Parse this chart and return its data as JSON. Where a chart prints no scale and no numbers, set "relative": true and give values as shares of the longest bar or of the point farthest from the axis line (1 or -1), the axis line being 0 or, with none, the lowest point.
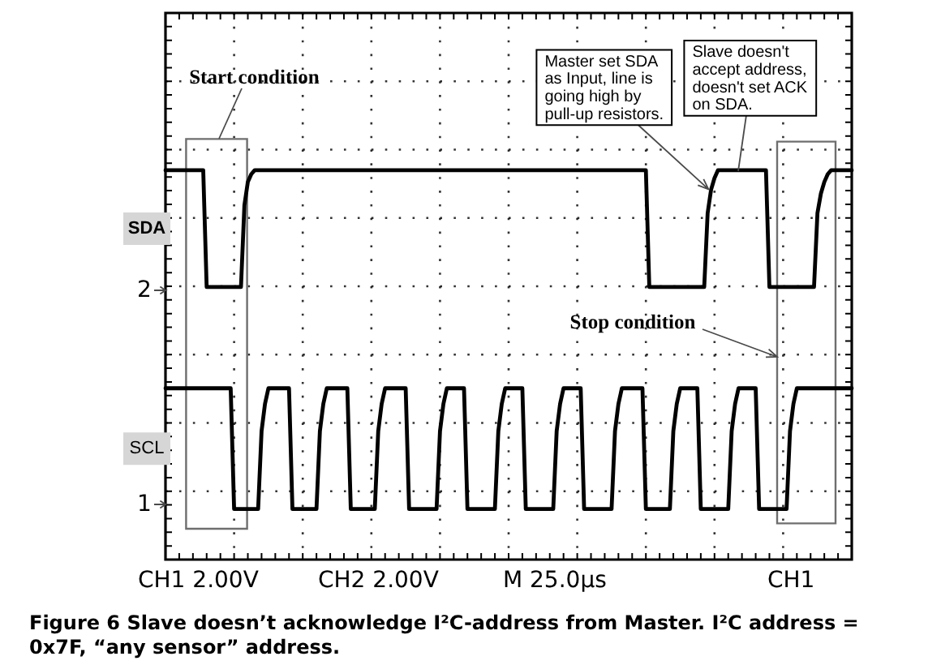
{
  "chart_data": {
    "type": "line",
    "relative": true,
    "grid": true,
    "categories": [
      null,
      null,
      null,
      null,
      null,
      null,
      null,
      null,
      null,
      null,
      null,
      null,
      null,
      null,
      null,
      null,
      null,
      null,
      null,
      null,
      null,
      null,
      null,
      null,
      null,
      null,
      null,
      null,
      null,
      null,
      null,
      null,
      null,
      null,
      null,
      null,
      null,
      null,
      null,
      null,
      null,
      null,
      null,
      null,
      null,
      null,
      null,
      null,
      null,
      null,
      null,
      null,
      null,
      null,
      null,
      null,
      null,
      null,
      null,
      null,
      null,
      null,
      null,
      null,
      null,
      null,
      null,
      null,
      null,
      null,
      null,
      null,
      null,
      null,
      null,
      null,
      null,
      null,
      null,
      null,
      null,
      null,
      null,
      null,
      null,
      null,
      null,
      null,
      null,
      null,
      null,
      null,
      null,
      null,
      null,
      null,
      null,
      null,
      null,
      null,
      null,
      null,
      null,
      null,
      null,
      null,
      null,
      null,
      null,
      null,
      null,
      null,
      null,
      null,
      null,
      null,
      null,
      null,
      null,
      null,
      null,
      null,
      null,
      null,
      null,
      null,
      null,
      null,
      null,
      null,
      null,
      null,
      null,
      null,
      null,
      null,
      null,
      null,
      null,
      null,
      null,
      null,
      null,
      null,
      null,
      null,
      null,
      null,
      null,
      null,
      null,
      null,
      null,
      null,
      null,
      null,
      null,
      null,
      null,
      null,
      null,
      null,
      null,
      null,
      null,
      null,
      null,
      null,
      null,
      null,
      null,
      null,
      null,
      null,
      null,
      null,
      null,
      null,
      null,
      null,
      null,
      null,
      null,
      null,
      null,
      null,
      null,
      null,
      null,
      null,
      null,
      null,
      null,
      null,
      null,
      null,
      null,
      null,
      null,
      null,
      null
    ],
    "series": [
      {
        "name": "SDA",
        "color": "#000000",
        "values": [
          1,
          1,
          1,
          1,
          1,
          1,
          1,
          1,
          1,
          1,
          1,
          1,
          0.7,
          0.7,
          0.7,
          0.7,
          0.7,
          0.7,
          0.7,
          0.7,
          0.7,
          0.7,
          0.7,
          0.91,
          0.97,
          0.99,
          1,
          1,
          1,
          1,
          1,
          1,
          1,
          1,
          1,
          1,
          1,
          1,
          1,
          1,
          1,
          1,
          1,
          1,
          1,
          1,
          1,
          1,
          1,
          1,
          1,
          1,
          1,
          1,
          1,
          1,
          1,
          1,
          1,
          1,
          1,
          1,
          1,
          1,
          1,
          1,
          1,
          1,
          1,
          1,
          1,
          1,
          1,
          1,
          1,
          1,
          1,
          1,
          1,
          1,
          1,
          1,
          1,
          1,
          1,
          1,
          1,
          1,
          1,
          1,
          1,
          1,
          1,
          1,
          1,
          1,
          1,
          1,
          1,
          1,
          1,
          1,
          1,
          1,
          1,
          1,
          1,
          1,
          1,
          1,
          1,
          1,
          1,
          1,
          1,
          1,
          1,
          1,
          1,
          1,
          1,
          1,
          1,
          1,
          1,
          1,
          1,
          1,
          1,
          1,
          1,
          1,
          1,
          1,
          1,
          1,
          1,
          1,
          1,
          1,
          1,
          0.7,
          0.7,
          0.7,
          0.7,
          0.7,
          0.7,
          0.7,
          0.7,
          0.7,
          0.7,
          0.7,
          0.7,
          0.7,
          0.7,
          0.7,
          0.7,
          0.7,
          0.89,
          0.95,
          0.98,
          1,
          1,
          1,
          1,
          1,
          1,
          1,
          1,
          1,
          1,
          1,
          1,
          1,
          1,
          1,
          0.7,
          0.7,
          0.7,
          0.7,
          0.7,
          0.7,
          0.7,
          0.7,
          0.7,
          0.7,
          0.7,
          0.7,
          0.7,
          0.7,
          0.89,
          0.94,
          0.97,
          0.99,
          1,
          1,
          1,
          1,
          1,
          1,
          1
        ]
      },
      {
        "name": "SCL",
        "color": "#000000",
        "values": [
          0.44,
          0.44,
          0.44,
          0.44,
          0.44,
          0.44,
          0.44,
          0.44,
          0.44,
          0.44,
          0.44,
          0.44,
          0.44,
          0.44,
          0.44,
          0.44,
          0.44,
          0.44,
          0.44,
          0.44,
          0.13,
          0.13,
          0.13,
          0.13,
          0.13,
          0.13,
          0.13,
          0.13,
          0.33,
          0.4,
          0.44,
          0.44,
          0.44,
          0.44,
          0.44,
          0.44,
          0.44,
          0.13,
          0.13,
          0.13,
          0.13,
          0.13,
          0.13,
          0.13,
          0.13,
          0.33,
          0.4,
          0.44,
          0.44,
          0.44,
          0.44,
          0.44,
          0.44,
          0.44,
          0.13,
          0.13,
          0.13,
          0.13,
          0.13,
          0.13,
          0.13,
          0.13,
          0.33,
          0.4,
          0.44,
          0.44,
          0.44,
          0.44,
          0.44,
          0.44,
          0.44,
          0.13,
          0.13,
          0.13,
          0.13,
          0.13,
          0.13,
          0.13,
          0.13,
          0.13,
          0.33,
          0.4,
          0.44,
          0.44,
          0.44,
          0.44,
          0.44,
          0.44,
          0.13,
          0.13,
          0.13,
          0.13,
          0.13,
          0.13,
          0.13,
          0.13,
          0.13,
          0.33,
          0.4,
          0.44,
          0.44,
          0.44,
          0.44,
          0.44,
          0.44,
          0.13,
          0.13,
          0.13,
          0.13,
          0.13,
          0.13,
          0.13,
          0.13,
          0.13,
          0.33,
          0.4,
          0.44,
          0.44,
          0.44,
          0.44,
          0.44,
          0.44,
          0.13,
          0.13,
          0.13,
          0.13,
          0.13,
          0.13,
          0.13,
          0.13,
          0.13,
          0.33,
          0.4,
          0.44,
          0.44,
          0.44,
          0.44,
          0.44,
          0.44,
          0.44,
          0.13,
          0.13,
          0.13,
          0.13,
          0.13,
          0.13,
          0.13,
          0.13,
          0.33,
          0.4,
          0.44,
          0.44,
          0.44,
          0.44,
          0.44,
          0.44,
          0.13,
          0.13,
          0.13,
          0.13,
          0.13,
          0.13,
          0.13,
          0.13,
          0.13,
          0.33,
          0.4,
          0.44,
          0.44,
          0.44,
          0.44,
          0.44,
          0.44,
          0.13,
          0.13,
          0.13,
          0.13,
          0.13,
          0.13,
          0.13,
          0.13,
          0.13,
          0.33,
          0.4,
          0.44,
          0.44,
          0.44,
          0.44,
          0.44,
          0.44,
          0.44,
          0.44,
          0.44,
          0.44,
          0.44,
          0.44,
          0.44,
          0.44,
          0.44,
          0.44,
          0.44
        ]
      }
    ],
    "annotations": [
      "Start condition",
      "Master set SDA as Input, line is going high by pull-up resistors.",
      "Slave doesn't accept address, doesn't set ACK on SDA.",
      "Stop condition",
      "2",
      "1",
      "CH1 2.00V",
      "CH2 2.00V",
      "M 25.0µs",
      "CH1",
      "Figure 6 Slave doesn’t acknowledge I²C-address from Master. I²C address = 0x7F, “any sensor” address."
    ]
  }
}
